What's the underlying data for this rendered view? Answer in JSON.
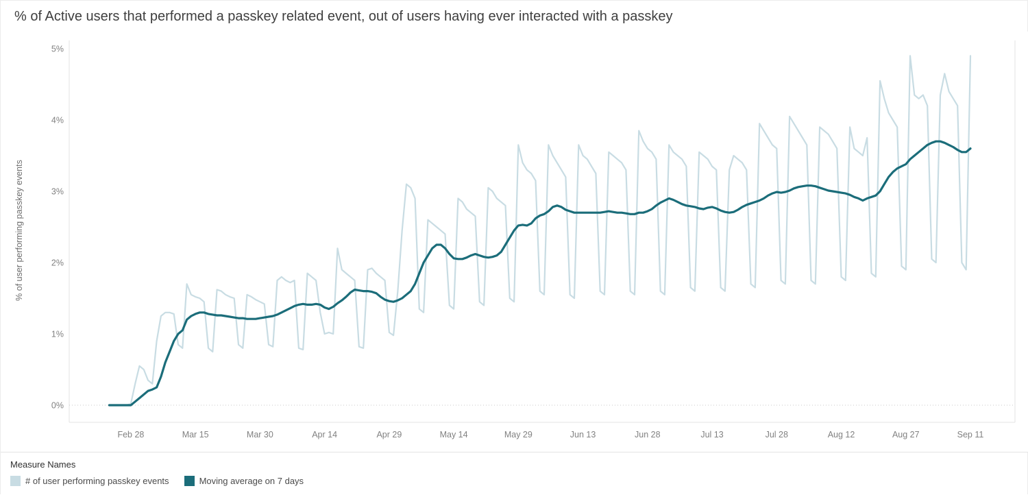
{
  "header": {
    "title": "% of Active users that performed a passkey related event, out of users having ever interacted with a passkey"
  },
  "chart": {
    "y_axis_title": "% of user performing passkey events"
  },
  "legend": {
    "title": "Measure Names",
    "items": [
      {
        "label": "# of user performing passkey events",
        "color": "#c8dce3",
        "key": "daily-series"
      },
      {
        "label": "Moving average on 7 days",
        "color": "#1b6d7a",
        "key": "moving-average"
      }
    ]
  },
  "chart_data": {
    "type": "line",
    "title": "% of Active users that performed a passkey related event, out of users having ever interacted with a passkey",
    "xlabel": "",
    "ylabel": "% of user performing passkey events",
    "ylim": [
      0,
      5
    ],
    "grid": "dotted-zero-line-only",
    "legend_position": "bottom-left",
    "x_encoding": "daily points, index 0 = Feb 23, index 200 = Sep 11",
    "x_ticks": [
      {
        "i": 5,
        "label": "Feb 28"
      },
      {
        "i": 20,
        "label": "Mar 15"
      },
      {
        "i": 35,
        "label": "Mar 30"
      },
      {
        "i": 50,
        "label": "Apr 14"
      },
      {
        "i": 65,
        "label": "Apr 29"
      },
      {
        "i": 80,
        "label": "May 14"
      },
      {
        "i": 95,
        "label": "May 29"
      },
      {
        "i": 110,
        "label": "Jun 13"
      },
      {
        "i": 125,
        "label": "Jun 28"
      },
      {
        "i": 140,
        "label": "Jul 13"
      },
      {
        "i": 155,
        "label": "Jul 28"
      },
      {
        "i": 170,
        "label": "Aug 12"
      },
      {
        "i": 185,
        "label": "Aug 27"
      },
      {
        "i": 200,
        "label": "Sep 11"
      }
    ],
    "y_ticks": [
      {
        "v": 0,
        "label": "0%"
      },
      {
        "v": 1,
        "label": "1%"
      },
      {
        "v": 2,
        "label": "2%"
      },
      {
        "v": 3,
        "label": "3%"
      },
      {
        "v": 4,
        "label": "4%"
      },
      {
        "v": 5,
        "label": "5%"
      }
    ],
    "series": [
      {
        "name": "# of user performing passkey events",
        "key": "daily-series",
        "color": "#c8dce3",
        "width": 2.2,
        "values": [
          0,
          0,
          0,
          0,
          0,
          0.02,
          0.3,
          0.55,
          0.5,
          0.35,
          0.3,
          0.9,
          1.25,
          1.3,
          1.3,
          1.28,
          0.85,
          0.8,
          1.7,
          1.55,
          1.52,
          1.5,
          1.45,
          0.8,
          0.75,
          1.62,
          1.6,
          1.55,
          1.52,
          1.5,
          0.85,
          0.8,
          1.55,
          1.52,
          1.48,
          1.45,
          1.42,
          0.85,
          0.82,
          1.75,
          1.8,
          1.75,
          1.72,
          1.75,
          0.8,
          0.78,
          1.85,
          1.8,
          1.75,
          1.3,
          1.0,
          1.02,
          1.0,
          2.2,
          1.9,
          1.85,
          1.8,
          1.75,
          0.82,
          0.8,
          1.9,
          1.92,
          1.85,
          1.8,
          1.75,
          1.02,
          0.98,
          1.6,
          2.45,
          3.1,
          3.05,
          2.9,
          1.35,
          1.3,
          2.6,
          2.55,
          2.5,
          2.45,
          2.4,
          1.4,
          1.35,
          2.9,
          2.85,
          2.75,
          2.7,
          2.65,
          1.45,
          1.4,
          3.05,
          3.0,
          2.9,
          2.85,
          2.8,
          1.5,
          1.45,
          3.65,
          3.4,
          3.3,
          3.25,
          3.15,
          1.6,
          1.55,
          3.65,
          3.5,
          3.4,
          3.3,
          3.2,
          1.55,
          1.5,
          3.65,
          3.5,
          3.45,
          3.35,
          3.25,
          1.6,
          1.55,
          3.55,
          3.5,
          3.45,
          3.4,
          3.3,
          1.6,
          1.55,
          3.85,
          3.7,
          3.6,
          3.55,
          3.45,
          1.6,
          1.55,
          3.65,
          3.55,
          3.5,
          3.45,
          3.35,
          1.65,
          1.6,
          3.55,
          3.5,
          3.45,
          3.35,
          3.3,
          1.65,
          1.6,
          3.3,
          3.5,
          3.45,
          3.4,
          3.3,
          1.7,
          1.65,
          3.95,
          3.85,
          3.75,
          3.65,
          3.6,
          1.75,
          1.7,
          4.05,
          3.95,
          3.85,
          3.75,
          3.65,
          1.75,
          1.7,
          3.9,
          3.85,
          3.8,
          3.7,
          3.6,
          1.8,
          1.75,
          3.9,
          3.6,
          3.55,
          3.5,
          3.75,
          1.85,
          1.8,
          4.55,
          4.3,
          4.1,
          4.0,
          3.9,
          1.95,
          1.9,
          4.9,
          4.35,
          4.3,
          4.35,
          4.2,
          2.05,
          2.0,
          4.35,
          4.65,
          4.4,
          4.3,
          4.2,
          2.0,
          1.9,
          4.9
        ]
      },
      {
        "name": "Moving average on 7 days",
        "key": "moving-average",
        "color": "#1b6d7a",
        "width": 3.2,
        "values": [
          0,
          0,
          0,
          0,
          0,
          0,
          0.05,
          0.1,
          0.15,
          0.2,
          0.22,
          0.25,
          0.4,
          0.6,
          0.75,
          0.9,
          1.0,
          1.05,
          1.2,
          1.25,
          1.28,
          1.3,
          1.3,
          1.28,
          1.27,
          1.26,
          1.26,
          1.25,
          1.24,
          1.23,
          1.22,
          1.22,
          1.21,
          1.21,
          1.21,
          1.22,
          1.23,
          1.24,
          1.25,
          1.27,
          1.3,
          1.33,
          1.36,
          1.39,
          1.41,
          1.42,
          1.41,
          1.41,
          1.42,
          1.41,
          1.37,
          1.35,
          1.38,
          1.43,
          1.47,
          1.52,
          1.58,
          1.62,
          1.61,
          1.6,
          1.6,
          1.59,
          1.57,
          1.52,
          1.48,
          1.46,
          1.45,
          1.47,
          1.5,
          1.55,
          1.6,
          1.7,
          1.85,
          2.0,
          2.1,
          2.2,
          2.25,
          2.25,
          2.2,
          2.12,
          2.06,
          2.05,
          2.05,
          2.07,
          2.1,
          2.12,
          2.1,
          2.08,
          2.07,
          2.08,
          2.1,
          2.15,
          2.25,
          2.35,
          2.45,
          2.52,
          2.53,
          2.52,
          2.55,
          2.62,
          2.66,
          2.68,
          2.72,
          2.78,
          2.8,
          2.78,
          2.74,
          2.72,
          2.7,
          2.7,
          2.7,
          2.7,
          2.7,
          2.7,
          2.7,
          2.71,
          2.72,
          2.71,
          2.7,
          2.7,
          2.69,
          2.68,
          2.68,
          2.7,
          2.7,
          2.72,
          2.75,
          2.8,
          2.84,
          2.87,
          2.9,
          2.88,
          2.85,
          2.82,
          2.8,
          2.79,
          2.78,
          2.76,
          2.75,
          2.77,
          2.78,
          2.76,
          2.73,
          2.71,
          2.7,
          2.71,
          2.74,
          2.78,
          2.81,
          2.83,
          2.85,
          2.87,
          2.9,
          2.94,
          2.97,
          2.99,
          2.98,
          2.99,
          3.01,
          3.04,
          3.06,
          3.07,
          3.08,
          3.08,
          3.07,
          3.05,
          3.03,
          3.01,
          3.0,
          2.99,
          2.98,
          2.97,
          2.95,
          2.92,
          2.9,
          2.87,
          2.9,
          2.92,
          2.94,
          3.0,
          3.1,
          3.2,
          3.27,
          3.32,
          3.35,
          3.38,
          3.45,
          3.5,
          3.55,
          3.6,
          3.65,
          3.68,
          3.7,
          3.7,
          3.68,
          3.65,
          3.62,
          3.58,
          3.55,
          3.55,
          3.6
        ]
      }
    ]
  }
}
